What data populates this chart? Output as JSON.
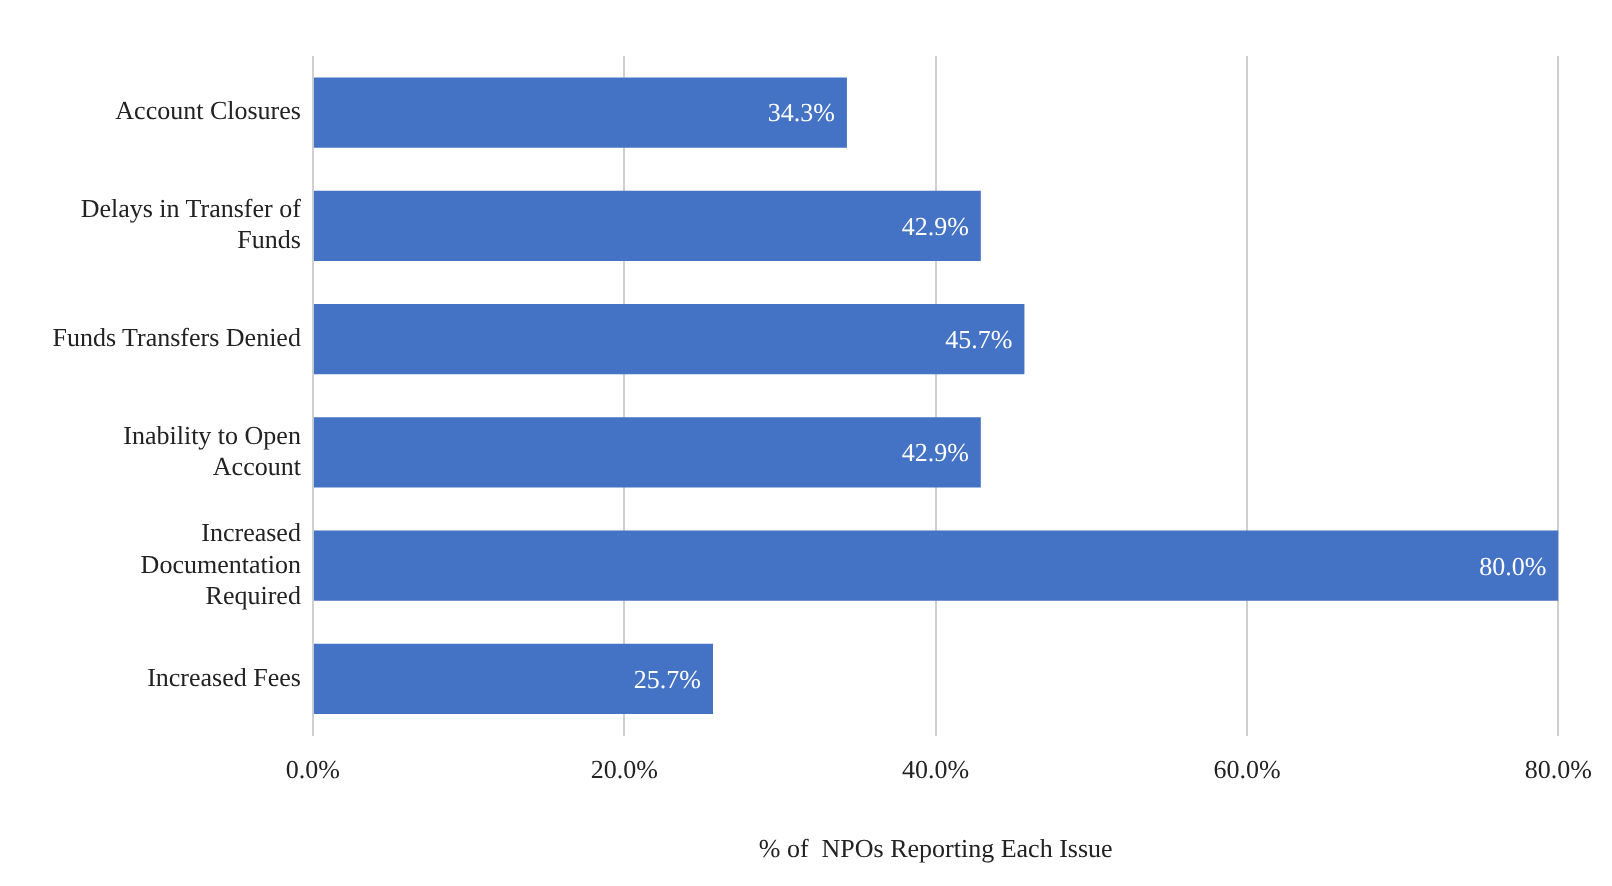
{
  "chart_data": {
    "type": "bar",
    "orientation": "horizontal",
    "xlabel": "% of  NPOs Reporting Each Issue",
    "categories": [
      "Account Closures",
      "Delays in Transfer of Funds",
      "Funds Transfers Denied",
      "Inability to Open Account",
      "Increased Documentation Required",
      "Increased Fees"
    ],
    "values": [
      34.3,
      42.9,
      45.7,
      42.9,
      80.0,
      25.7
    ],
    "value_labels": [
      "34.3%",
      "42.9%",
      "45.7%",
      "42.9%",
      "80.0%",
      "25.7%"
    ],
    "color": "#4472c4",
    "xlim": [
      0,
      80
    ],
    "xticks": [
      {
        "value": 0,
        "label": "0.0%"
      },
      {
        "value": 20,
        "label": "20.0%"
      },
      {
        "value": 40,
        "label": "40.0%"
      },
      {
        "value": 60,
        "label": "60.0%"
      },
      {
        "value": 80,
        "label": "80.0%"
      }
    ],
    "grid": "x",
    "legend": false
  }
}
